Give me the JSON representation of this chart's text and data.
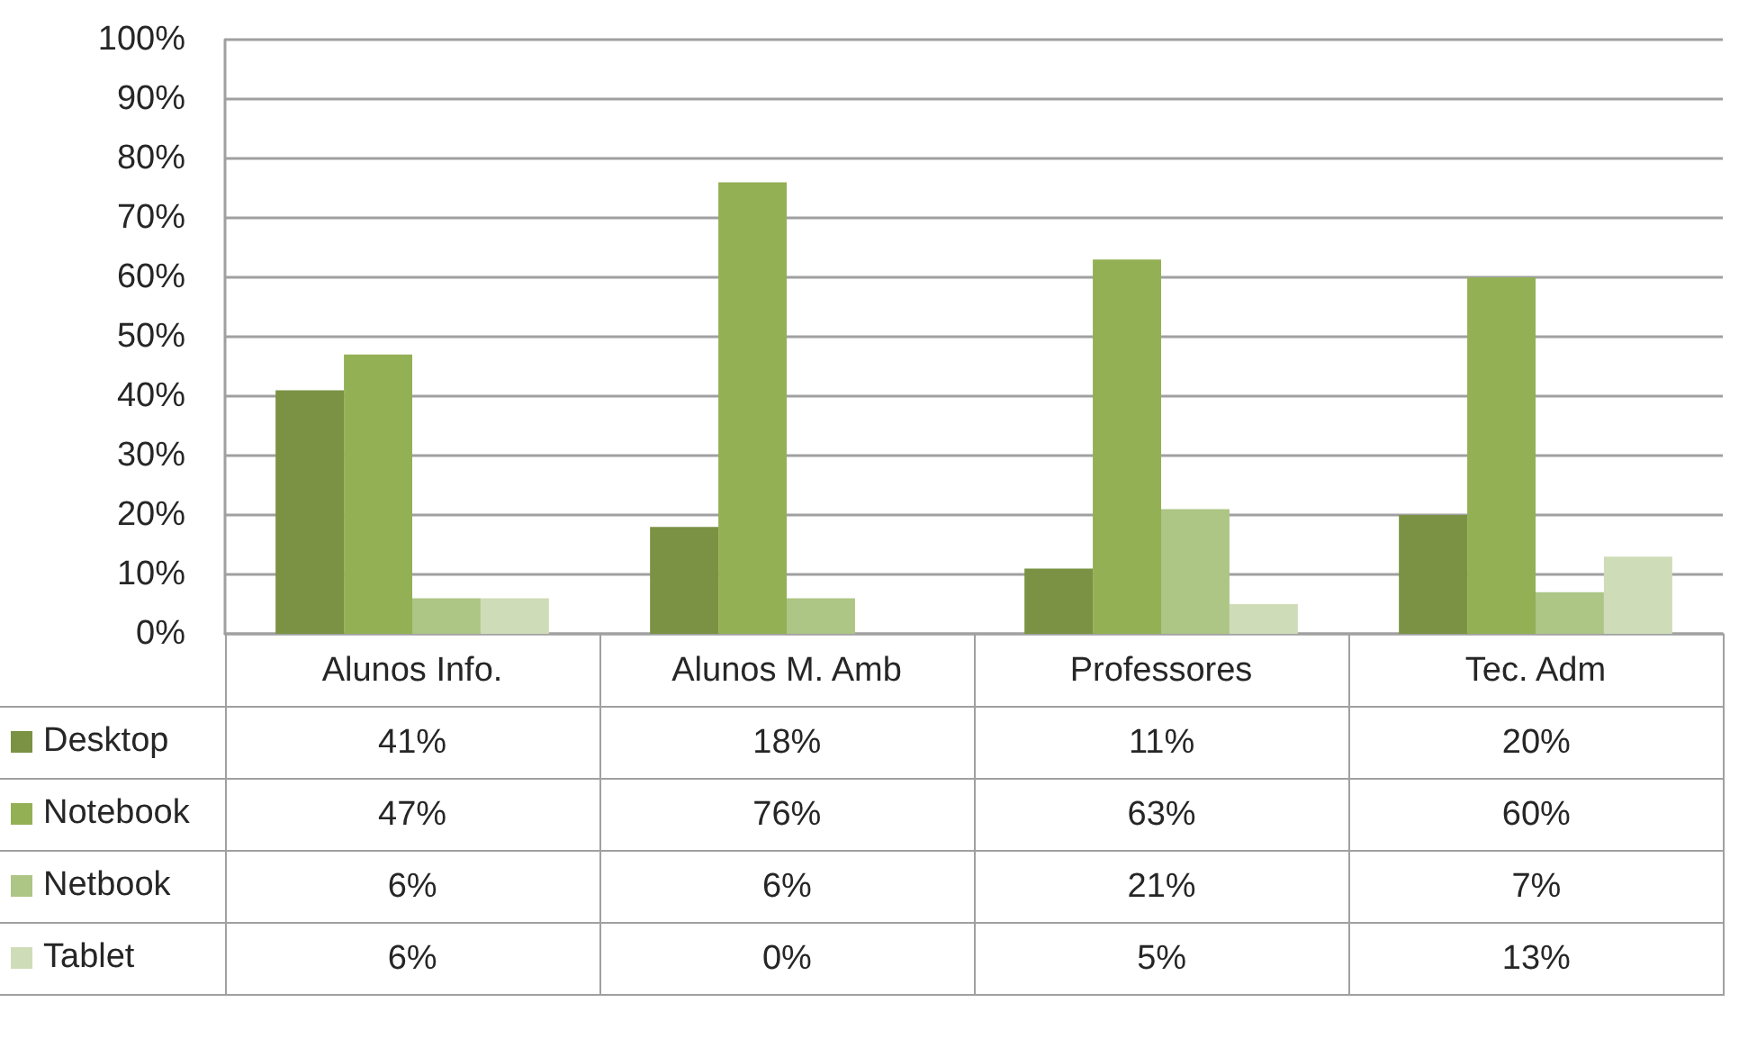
{
  "chart_data": {
    "type": "bar",
    "categories": [
      "Alunos Info.",
      "Alunos M. Amb",
      "Professores",
      "Tec. Adm"
    ],
    "series": [
      {
        "name": "Desktop",
        "color": "#7b9244",
        "values": [
          41,
          18,
          11,
          20
        ],
        "value_labels": [
          "41%",
          "18%",
          "11%",
          "20%"
        ]
      },
      {
        "name": "Notebook",
        "color": "#93b055",
        "values": [
          47,
          76,
          63,
          60
        ],
        "value_labels": [
          "47%",
          "76%",
          "63%",
          "60%"
        ]
      },
      {
        "name": "Netbook",
        "color": "#adc585",
        "values": [
          6,
          6,
          21,
          7
        ],
        "value_labels": [
          "6%",
          "6%",
          "21%",
          "7%"
        ]
      },
      {
        "name": "Tablet",
        "color": "#cfdcb8",
        "values": [
          6,
          0,
          5,
          13
        ],
        "value_labels": [
          "6%",
          "0%",
          "5%",
          "13%"
        ]
      }
    ],
    "ylim": [
      0,
      100
    ],
    "yticks": [
      {
        "value": 0,
        "label": "0%"
      },
      {
        "value": 10,
        "label": "10%"
      },
      {
        "value": 20,
        "label": "20%"
      },
      {
        "value": 30,
        "label": "30%"
      },
      {
        "value": 40,
        "label": "40%"
      },
      {
        "value": 50,
        "label": "50%"
      },
      {
        "value": 60,
        "label": "60%"
      },
      {
        "value": 70,
        "label": "70%"
      },
      {
        "value": 80,
        "label": "80%"
      },
      {
        "value": 90,
        "label": "90%"
      },
      {
        "value": 100,
        "label": "100%"
      }
    ],
    "grid": "y",
    "legend": "bottom left"
  }
}
